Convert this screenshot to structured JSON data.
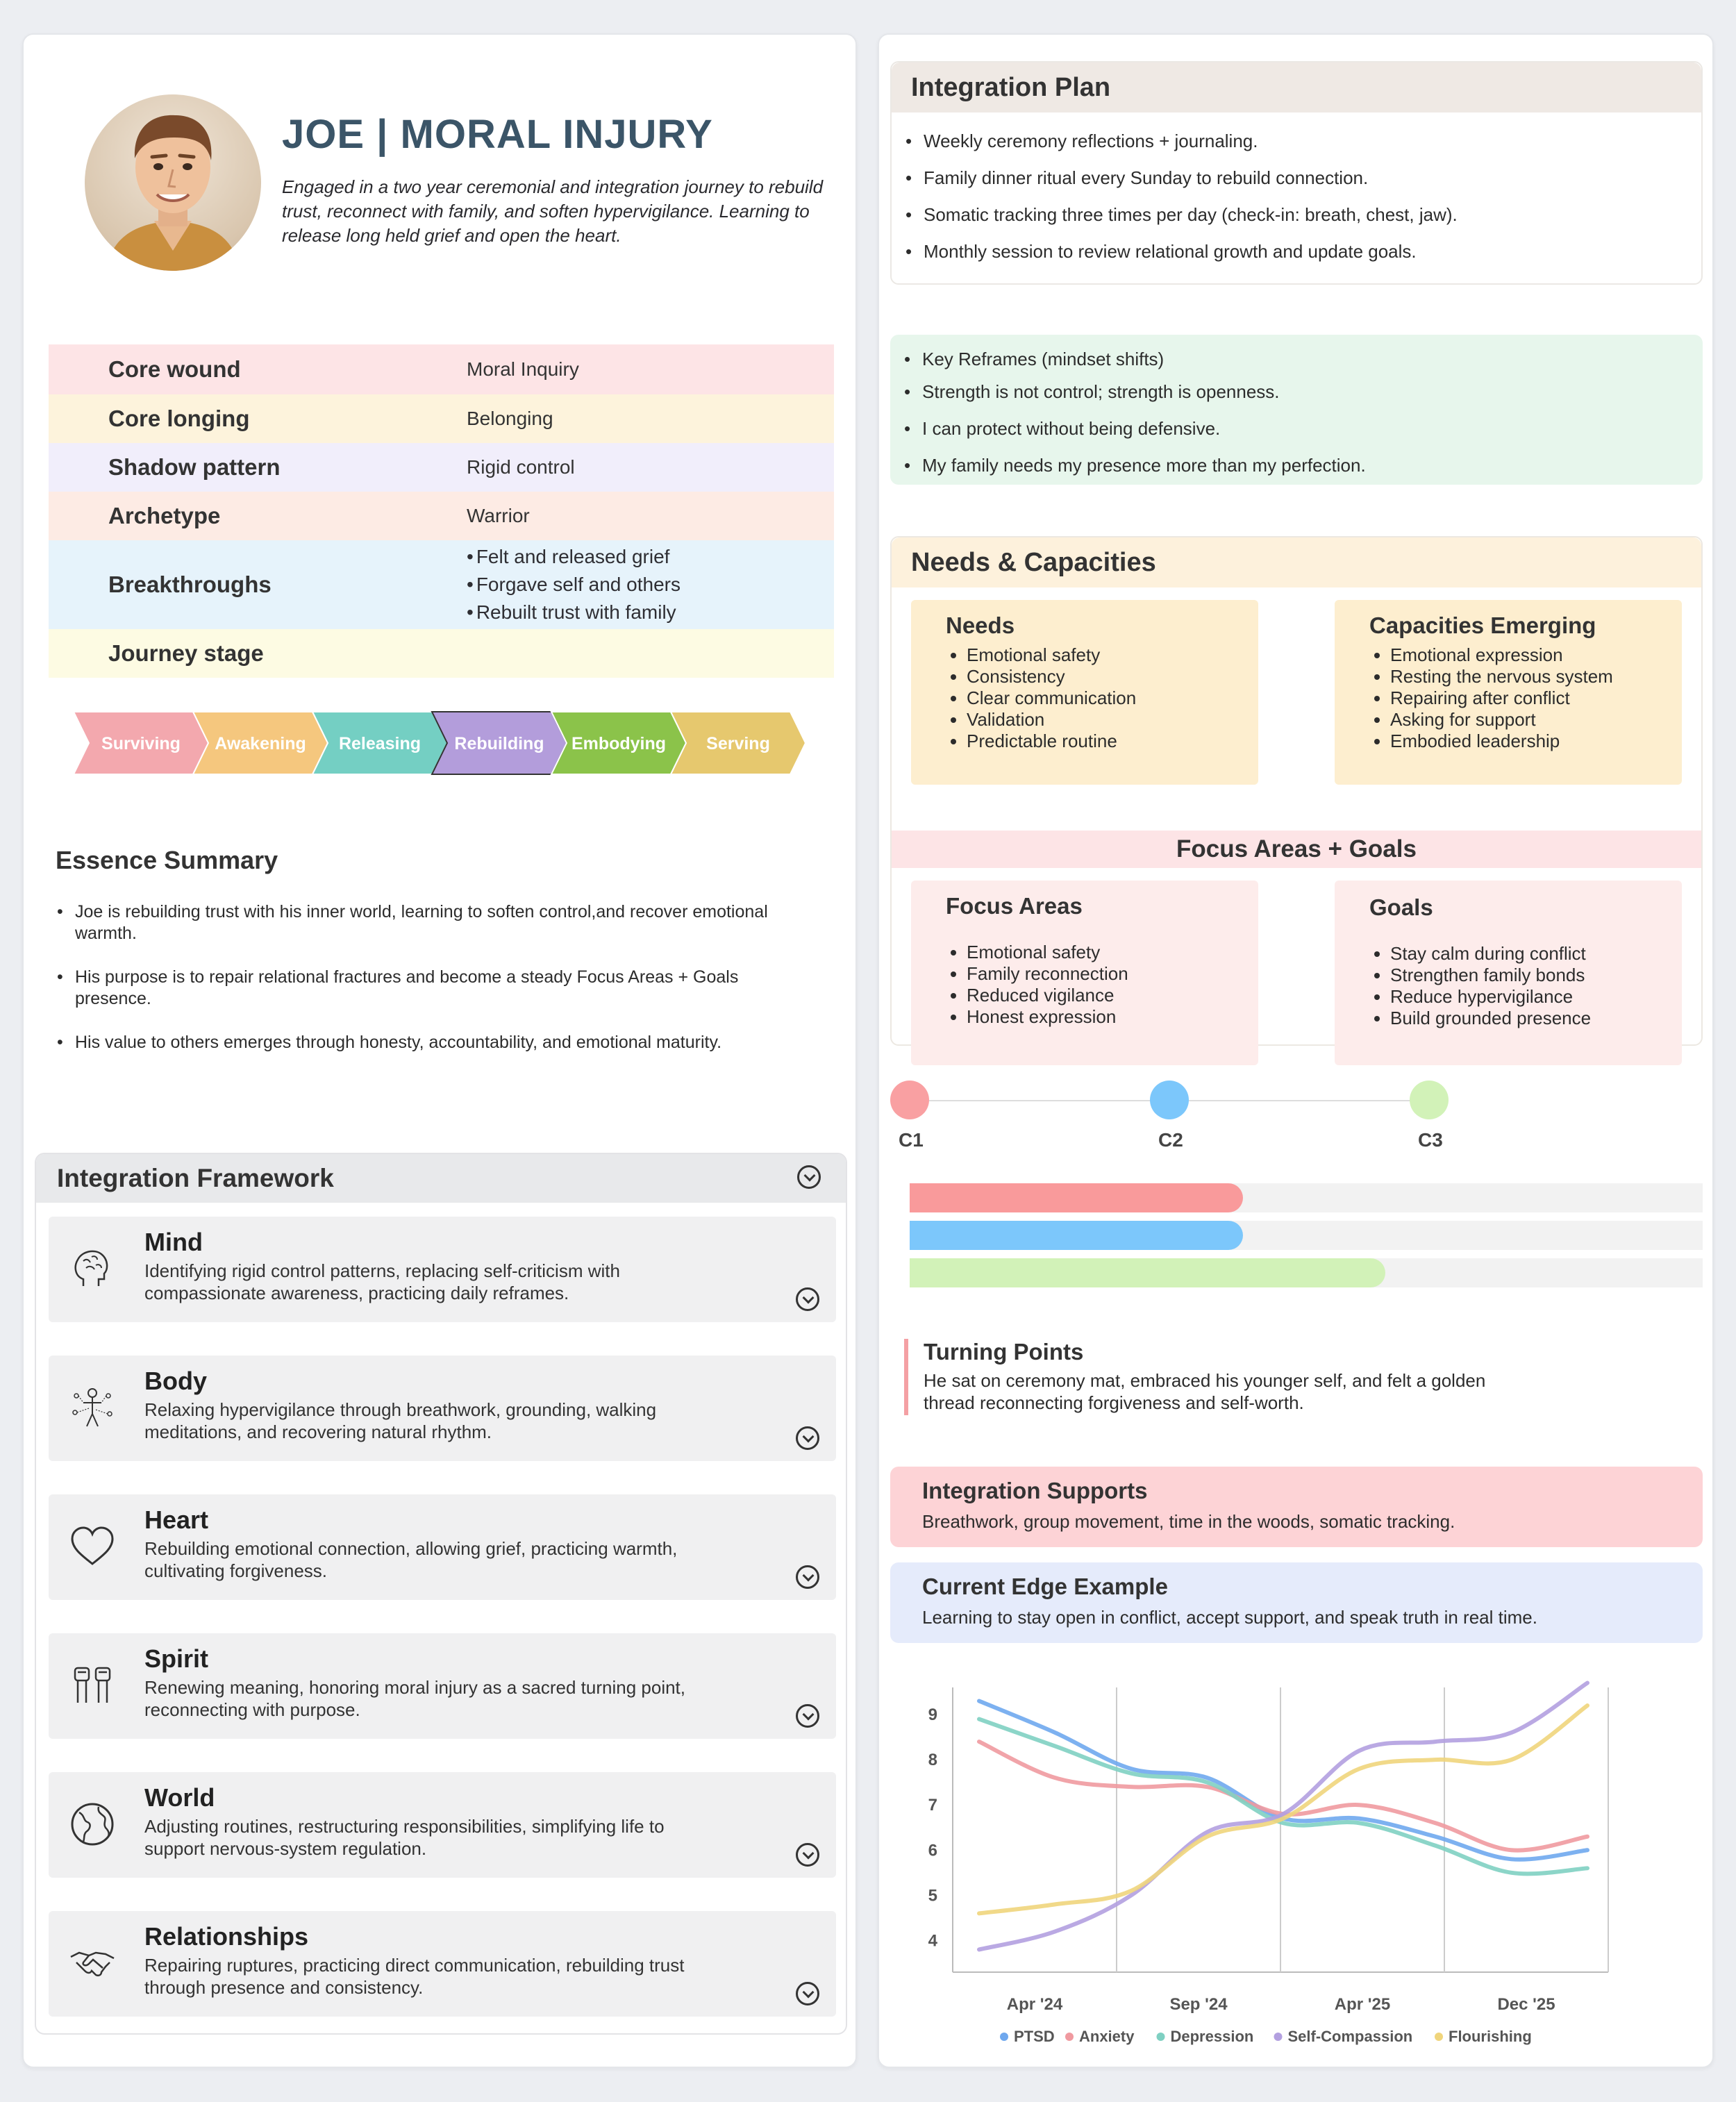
{
  "profile": {
    "title": "JOE | MORAL INJURY",
    "intro": "Engaged in a two year ceremonial and integration journey to rebuild trust, reconnect with family, and soften hypervigilance. Learning to release long held grief and open the heart.",
    "rows": [
      {
        "key": "Core wound",
        "value": "Moral Inquiry",
        "color": "#fde4e6"
      },
      {
        "key": "Core longing",
        "value": "Belonging",
        "color": "#fdf3dc"
      },
      {
        "key": "Shadow pattern",
        "value": "Rigid control",
        "color": "#f1eefb"
      },
      {
        "key": "Archetype",
        "value": "Warrior",
        "color": "#fdebe4"
      },
      {
        "key": "Breakthroughs",
        "items": [
          "Felt and released grief",
          "Forgave self and others",
          "Rebuilt trust with family"
        ],
        "color": "#e6f3fb"
      },
      {
        "key": "Journey stage",
        "value": "",
        "color": "#fdfbe3"
      }
    ],
    "stages": [
      {
        "label": "Surviving",
        "color": "#f3a8ae"
      },
      {
        "label": "Awakening",
        "color": "#f5c77e"
      },
      {
        "label": "Releasing",
        "color": "#74cfc3"
      },
      {
        "label": "Rebuilding",
        "color": "#b39ddb",
        "active": true
      },
      {
        "label": "Embodying",
        "color": "#8bc34a"
      },
      {
        "label": "Serving",
        "color": "#e6c86e"
      }
    ]
  },
  "essence": {
    "title": "Essence Summary",
    "items": [
      "Joe is rebuilding trust with his inner world, learning to soften control,and recover emotional warmth.",
      "His purpose is to repair relational fractures and become a steady Focus Areas + Goals presence.",
      "His value to others emerges through honesty, accountability, and emotional maturity."
    ]
  },
  "framework": {
    "title": "Integration Framework",
    "cards": [
      {
        "title": "Mind",
        "icon": "brain-icon",
        "desc": "Identifying rigid control patterns, replacing self-criticism with compassionate awareness, practicing daily reframes."
      },
      {
        "title": "Body",
        "icon": "body-nodes-icon",
        "desc": "Relaxing hypervigilance through breathwork, grounding, walking meditations, and recovering natural rhythm."
      },
      {
        "title": "Heart",
        "icon": "heart-icon",
        "desc": "Rebuilding emotional connection, allowing grief, practicing warmth, cultivating forgiveness."
      },
      {
        "title": "Spirit",
        "icon": "raised-fists-icon",
        "desc": "Renewing meaning, honoring moral injury as a sacred turning point, reconnecting with purpose."
      },
      {
        "title": "World",
        "icon": "globe-icon",
        "desc": "Adjusting routines, restructuring responsibilities, simplifying life to support nervous-system regulation."
      },
      {
        "title": "Relationships",
        "icon": "handshake-icon",
        "desc": "Repairing ruptures, practicing direct communication, rebuilding trust through presence and consistency."
      }
    ]
  },
  "integration_plan": {
    "title": "Integration Plan",
    "items": [
      "Weekly ceremony reflections + journaling.",
      "Family dinner ritual every Sunday to rebuild connection.",
      "Somatic tracking three times per day (check-in: breath, chest, jaw).",
      "Monthly session to review relational growth and update goals."
    ]
  },
  "reframes": {
    "items": [
      "Key Reframes (mindset shifts)",
      "Strength is not control; strength is openness.",
      "I can protect without being defensive.",
      "My family needs my presence more than my perfection."
    ]
  },
  "needs_capacities": {
    "title": "Needs & Capacities",
    "needs_title": "Needs",
    "needs": [
      "Emotional safety",
      "Consistency",
      "Clear communication",
      "Validation",
      "Predictable routine"
    ],
    "capacities_title": "Capacities Emerging",
    "capacities": [
      "Emotional expression",
      "Resting the nervous system",
      "Repairing after conflict",
      "Asking for support",
      "Embodied leadership"
    ],
    "focus_header": "Focus Areas + Goals",
    "focus_title": "Focus Areas",
    "focus": [
      "Emotional safety",
      "Family reconnection",
      "Reduced vigilance",
      "Honest expression"
    ],
    "goals_title": "Goals",
    "goals": [
      "Stay calm during conflict",
      "Strengthen family bonds",
      "Reduce hypervigilance",
      "Build grounded presence"
    ]
  },
  "timeline": {
    "nodes": [
      {
        "label": "C1",
        "color": "#f9a0a2"
      },
      {
        "label": "C2",
        "color": "#7cc7fb"
      },
      {
        "label": "C3",
        "color": "#d2f2b8"
      }
    ],
    "progress": [
      {
        "fraction": 0.42,
        "color": "#f99a9b"
      },
      {
        "fraction": 0.42,
        "color": "#7cc7fb"
      },
      {
        "fraction": 0.6,
        "color": "#d2f2b8"
      }
    ]
  },
  "turning_points": {
    "title": "Turning Points",
    "text": "He sat on ceremony mat, embraced his younger self, and felt a golden thread reconnecting forgiveness and self-worth."
  },
  "supports": {
    "title": "Integration Supports",
    "text": "Breathwork, group movement, time in the woods, somatic tracking."
  },
  "edge": {
    "title": "Current Edge Example",
    "text": "Learning to stay open in conflict, accept support, and speak truth in real time."
  },
  "chart_data": {
    "type": "line",
    "x_ticks": [
      "Apr '24",
      "Sep '24",
      "Apr '25",
      "Dec '25"
    ],
    "y_ticks": [
      4,
      5,
      6,
      7,
      8,
      9
    ],
    "ylim": [
      3.3,
      9.6
    ],
    "grid": "vertical",
    "legend_position": "bottom",
    "x": [
      0,
      0.5,
      1,
      1.5,
      2,
      2.5,
      3,
      3.5,
      4
    ],
    "series": [
      {
        "name": "PTSD",
        "color": "#6fa8ee",
        "values": [
          9.3,
          8.6,
          7.8,
          7.6,
          6.7,
          6.7,
          6.3,
          5.8,
          6.0
        ]
      },
      {
        "name": "Anxiety",
        "color": "#f09aa0",
        "values": [
          8.4,
          7.6,
          7.4,
          7.4,
          6.8,
          7.0,
          6.6,
          6.0,
          6.3
        ]
      },
      {
        "name": "Depression",
        "color": "#7fd0c2",
        "values": [
          8.9,
          8.3,
          7.7,
          7.5,
          6.6,
          6.6,
          6.1,
          5.5,
          5.6
        ]
      },
      {
        "name": "Self-Compassion",
        "color": "#b3a0e0",
        "values": [
          3.8,
          4.2,
          5.0,
          6.4,
          6.8,
          8.2,
          8.4,
          8.6,
          9.7
        ]
      },
      {
        "name": "Flourishing",
        "color": "#f0d57c",
        "values": [
          4.6,
          4.8,
          5.1,
          6.3,
          6.7,
          7.8,
          8.0,
          8.0,
          9.2
        ]
      }
    ]
  }
}
